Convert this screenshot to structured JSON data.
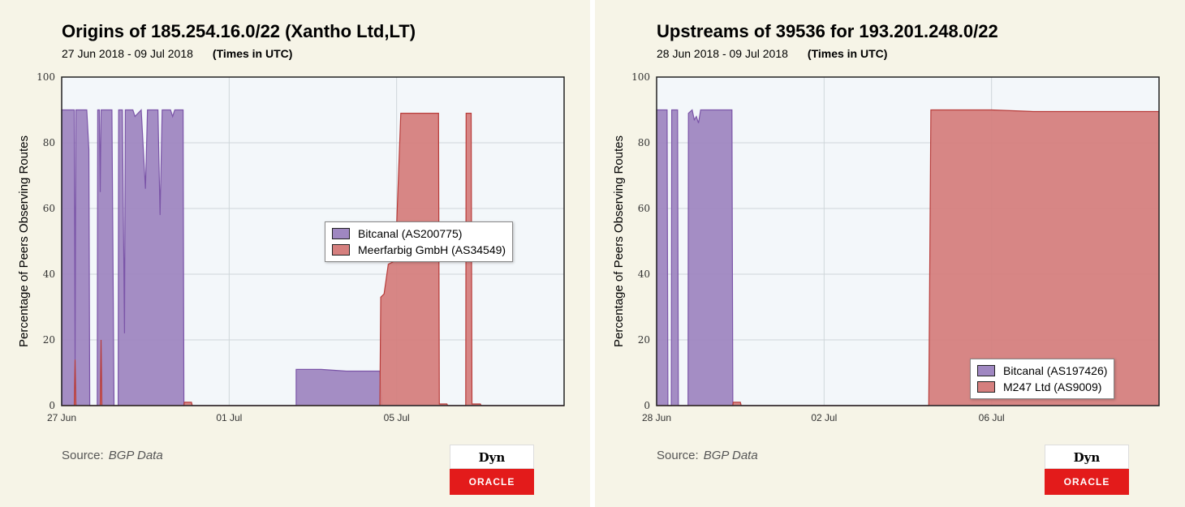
{
  "charts": [
    {
      "title": "Origins of 185.254.16.0/22 (Xantho Ltd,LT)",
      "subtitle_dates": "27 Jun 2018 - 09 Jul 2018",
      "subtitle_tz": "(Times in UTC)",
      "source_label": "Source:",
      "source_name": "BGP Data",
      "logo_top": "Dyn",
      "logo_bottom": "ORACLE"
    },
    {
      "title": "Upstreams of 39536 for 193.201.248.0/22",
      "subtitle_dates": "28 Jun 2018 - 09 Jul 2018",
      "subtitle_tz": "(Times in UTC)",
      "source_label": "Source:",
      "source_name": "BGP Data",
      "logo_top": "Dyn",
      "logo_bottom": "ORACLE"
    }
  ],
  "colors": {
    "purple": "#9f87c1",
    "purple_line": "#7b55a8",
    "red": "#d57f7e",
    "red_line": "#b83c3a",
    "plot_bg": "#f3f7fa",
    "grid": "#cfd6da"
  },
  "chart_data": [
    {
      "type": "area",
      "title": "Origins of 185.254.16.0/22 (Xantho Ltd,LT)",
      "ylabel": "Percentage of Peers Observing Routes",
      "ylim": [
        0,
        100
      ],
      "yticks": [
        0,
        20,
        40,
        60,
        80,
        100
      ],
      "xlim_days": [
        0,
        12
      ],
      "xticks": [
        {
          "day": 0,
          "label": "27 Jun"
        },
        {
          "day": 4,
          "label": "01 Jul"
        },
        {
          "day": 8,
          "label": "05 Jul"
        }
      ],
      "legend_position": "center-right",
      "series": [
        {
          "name": "Bitcanal (AS200775)",
          "color": "purple",
          "points": [
            [
              0,
              0
            ],
            [
              0,
              90
            ],
            [
              0.3,
              90
            ],
            [
              0.32,
              14
            ],
            [
              0.34,
              90
            ],
            [
              0.6,
              90
            ],
            [
              0.65,
              78
            ],
            [
              0.67,
              0
            ],
            [
              0.85,
              0
            ],
            [
              0.86,
              90
            ],
            [
              0.9,
              90
            ],
            [
              0.92,
              65
            ],
            [
              0.94,
              90
            ],
            [
              1.2,
              90
            ],
            [
              1.25,
              0
            ],
            [
              1.35,
              0
            ],
            [
              1.36,
              90
            ],
            [
              1.45,
              90
            ],
            [
              1.5,
              22
            ],
            [
              1.52,
              90
            ],
            [
              1.7,
              90
            ],
            [
              1.75,
              88
            ],
            [
              1.9,
              90
            ],
            [
              2.0,
              66
            ],
            [
              2.05,
              90
            ],
            [
              2.15,
              90
            ],
            [
              2.3,
              90
            ],
            [
              2.35,
              58
            ],
            [
              2.4,
              90
            ],
            [
              2.6,
              90
            ],
            [
              2.65,
              88
            ],
            [
              2.7,
              90
            ],
            [
              2.9,
              90
            ],
            [
              2.92,
              0
            ],
            [
              5.6,
              0
            ],
            [
              5.6,
              11
            ],
            [
              6.2,
              11
            ],
            [
              6.8,
              10.5
            ],
            [
              7.6,
              10.5
            ],
            [
              7.65,
              0
            ],
            [
              12,
              0
            ]
          ]
        },
        {
          "name": "Meerfarbig GmbH (AS34549)",
          "color": "red",
          "points": [
            [
              0,
              0
            ],
            [
              0.3,
              0
            ],
            [
              0.32,
              14
            ],
            [
              0.34,
              0
            ],
            [
              0.92,
              0
            ],
            [
              0.94,
              20
            ],
            [
              0.96,
              0
            ],
            [
              2.92,
              0
            ],
            [
              2.93,
              1
            ],
            [
              3.1,
              1
            ],
            [
              3.12,
              0
            ],
            [
              7.6,
              0
            ],
            [
              7.62,
              33
            ],
            [
              7.7,
              34
            ],
            [
              7.8,
              43
            ],
            [
              7.95,
              44
            ],
            [
              8.0,
              55
            ],
            [
              8.1,
              89
            ],
            [
              8.6,
              89
            ],
            [
              9.0,
              89
            ],
            [
              9.02,
              0.5
            ],
            [
              9.2,
              0.5
            ],
            [
              9.22,
              0
            ],
            [
              9.65,
              0
            ],
            [
              9.66,
              89
            ],
            [
              9.78,
              89
            ],
            [
              9.8,
              0.5
            ],
            [
              10.0,
              0.5
            ],
            [
              10.02,
              0
            ],
            [
              12,
              0
            ]
          ]
        }
      ]
    },
    {
      "type": "area",
      "title": "Upstreams of 39536 for 193.201.248.0/22",
      "ylabel": "Percentage of Peers Observing Routes",
      "ylim": [
        0,
        100
      ],
      "yticks": [
        0,
        20,
        40,
        60,
        80,
        100
      ],
      "xlim_days": [
        0,
        12
      ],
      "xticks": [
        {
          "day": 0,
          "label": "28 Jun"
        },
        {
          "day": 4,
          "label": "02 Jul"
        },
        {
          "day": 8,
          "label": "06 Jul"
        }
      ],
      "legend_position": "bottom-right",
      "series": [
        {
          "name": "Bitcanal (AS197426)",
          "color": "purple",
          "points": [
            [
              0,
              0
            ],
            [
              0,
              90
            ],
            [
              0.25,
              90
            ],
            [
              0.27,
              0
            ],
            [
              0.35,
              0
            ],
            [
              0.36,
              90
            ],
            [
              0.5,
              90
            ],
            [
              0.52,
              0
            ],
            [
              0.75,
              0
            ],
            [
              0.76,
              89
            ],
            [
              0.85,
              90
            ],
            [
              0.9,
              87
            ],
            [
              0.95,
              88
            ],
            [
              1.0,
              86
            ],
            [
              1.05,
              90
            ],
            [
              1.8,
              90
            ],
            [
              1.82,
              0
            ],
            [
              12,
              0
            ]
          ]
        },
        {
          "name": "M247 Ltd (AS9009)",
          "color": "red",
          "points": [
            [
              0,
              0
            ],
            [
              1.82,
              0
            ],
            [
              1.83,
              1
            ],
            [
              2.0,
              1
            ],
            [
              2.02,
              0
            ],
            [
              6.5,
              0
            ],
            [
              6.55,
              90
            ],
            [
              8.0,
              90
            ],
            [
              9.0,
              89.5
            ],
            [
              12,
              89.5
            ]
          ]
        }
      ]
    }
  ]
}
